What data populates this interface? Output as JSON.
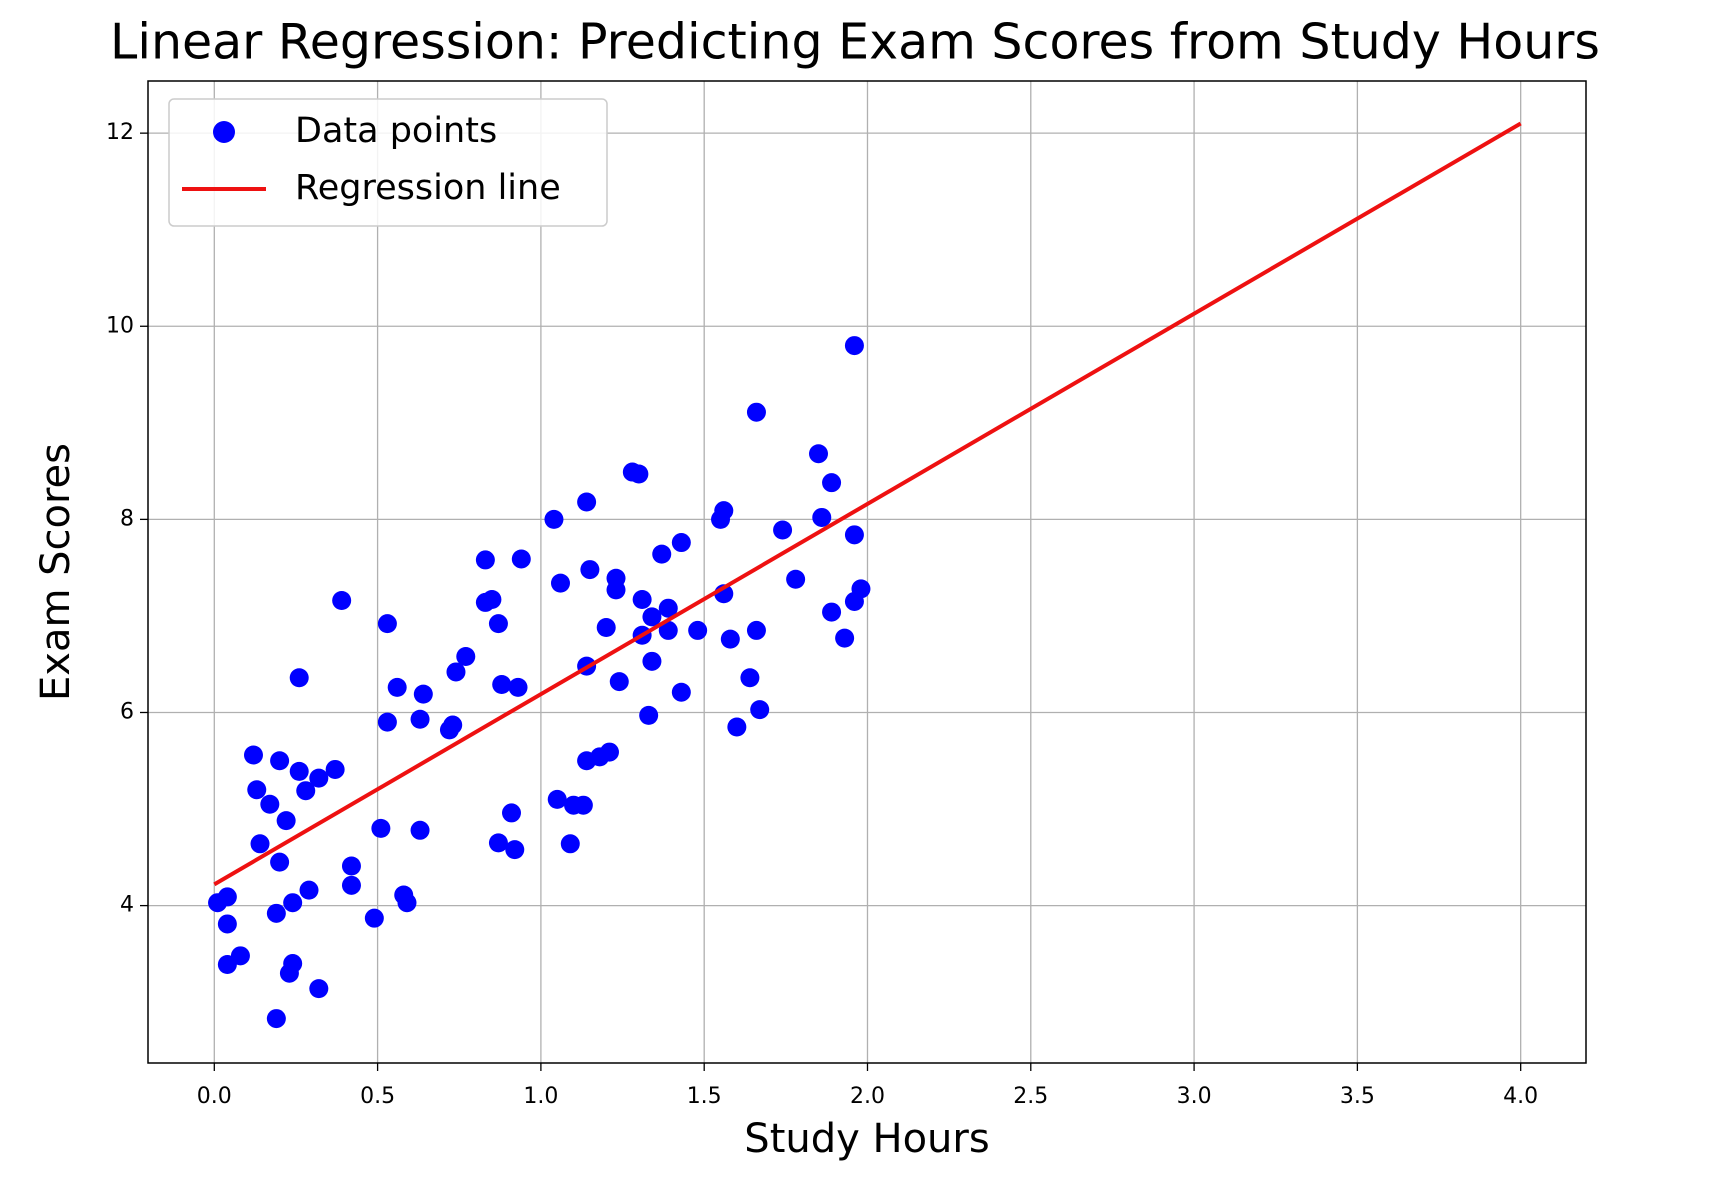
{
  "chart_data": {
    "type": "scatter",
    "title": "Linear Regression: Predicting Exam Scores from Study Hours",
    "x_label": "Study Hours",
    "y_label": "Exam Scores",
    "xlim": [
      -0.203,
      4.2
    ],
    "ylim": [
      2.37,
      12.54
    ],
    "xticks": [
      {
        "value": 0,
        "label": "0.0"
      },
      0.5,
      {
        "value": 1,
        "label": "1.0"
      },
      1.5,
      {
        "value": 2,
        "label": "2.0"
      },
      2.5,
      {
        "value": 3,
        "label": "3.0"
      },
      3.5,
      {
        "value": 4,
        "label": "4.0"
      }
    ],
    "yticks": [
      4,
      6,
      8,
      10,
      12
    ],
    "grid": true,
    "legend": "upper left",
    "series": [
      {
        "name": "Data points",
        "type": "scatter",
        "color": "#0000ff",
        "x": [
          0.01,
          0.04,
          0.04,
          0.04,
          0.08,
          0.19,
          0.19,
          0.24,
          0.23,
          0.24,
          0.29,
          0.32,
          0.12,
          0.13,
          0.14,
          0.17,
          0.2,
          0.2,
          0.22,
          0.26,
          0.26,
          0.28,
          0.32,
          0.37,
          0.39,
          0.42,
          0.42,
          0.49,
          0.51,
          0.53,
          0.53,
          0.56,
          0.58,
          0.59,
          0.63,
          0.64,
          0.63,
          0.72,
          0.73,
          0.74,
          0.77,
          0.83,
          0.83,
          0.85,
          0.87,
          0.88,
          0.87,
          0.91,
          0.92,
          0.93,
          0.94,
          1.04,
          1.05,
          1.06,
          1.09,
          1.1,
          1.13,
          1.14,
          1.14,
          1.14,
          1.15,
          1.18,
          1.2,
          1.21,
          1.23,
          1.23,
          1.24,
          1.28,
          1.3,
          1.31,
          1.31,
          1.33,
          1.34,
          1.34,
          1.37,
          1.39,
          1.39,
          1.43,
          1.43,
          1.48,
          1.55,
          1.56,
          1.56,
          1.58,
          1.6,
          1.64,
          1.66,
          1.66,
          1.67,
          1.74,
          1.78,
          1.85,
          1.86,
          1.89,
          1.89,
          1.93,
          1.96,
          1.96,
          1.96,
          1.98
        ],
        "values": [
          4.03,
          4.09,
          3.81,
          3.39,
          3.48,
          2.83,
          3.92,
          3.4,
          3.3,
          4.03,
          4.16,
          3.14,
          5.56,
          5.2,
          4.64,
          5.05,
          5.5,
          4.45,
          4.88,
          6.36,
          5.39,
          5.19,
          5.32,
          5.41,
          7.16,
          4.21,
          4.41,
          3.87,
          4.8,
          6.92,
          5.9,
          6.26,
          4.11,
          4.03,
          5.93,
          6.19,
          4.78,
          5.82,
          5.87,
          6.42,
          6.58,
          7.14,
          7.58,
          7.17,
          6.92,
          6.29,
          4.65,
          4.96,
          4.58,
          6.26,
          7.59,
          8.0,
          5.1,
          7.34,
          4.64,
          5.04,
          5.04,
          5.5,
          6.48,
          8.18,
          7.48,
          5.54,
          6.88,
          5.59,
          7.39,
          7.27,
          6.32,
          8.49,
          8.47,
          7.17,
          6.8,
          5.97,
          6.99,
          6.53,
          7.64,
          6.85,
          7.08,
          7.76,
          6.21,
          6.85,
          8.0,
          8.09,
          7.23,
          6.76,
          5.85,
          6.36,
          6.85,
          9.11,
          6.03,
          7.89,
          7.38,
          8.68,
          8.02,
          8.38,
          7.04,
          6.77,
          7.84,
          7.15,
          9.8,
          7.28
        ]
      },
      {
        "name": "Regression line",
        "type": "line",
        "color": "#ee1111",
        "x": [
          0,
          4
        ],
        "values": [
          4.22,
          12.1
        ]
      }
    ]
  }
}
